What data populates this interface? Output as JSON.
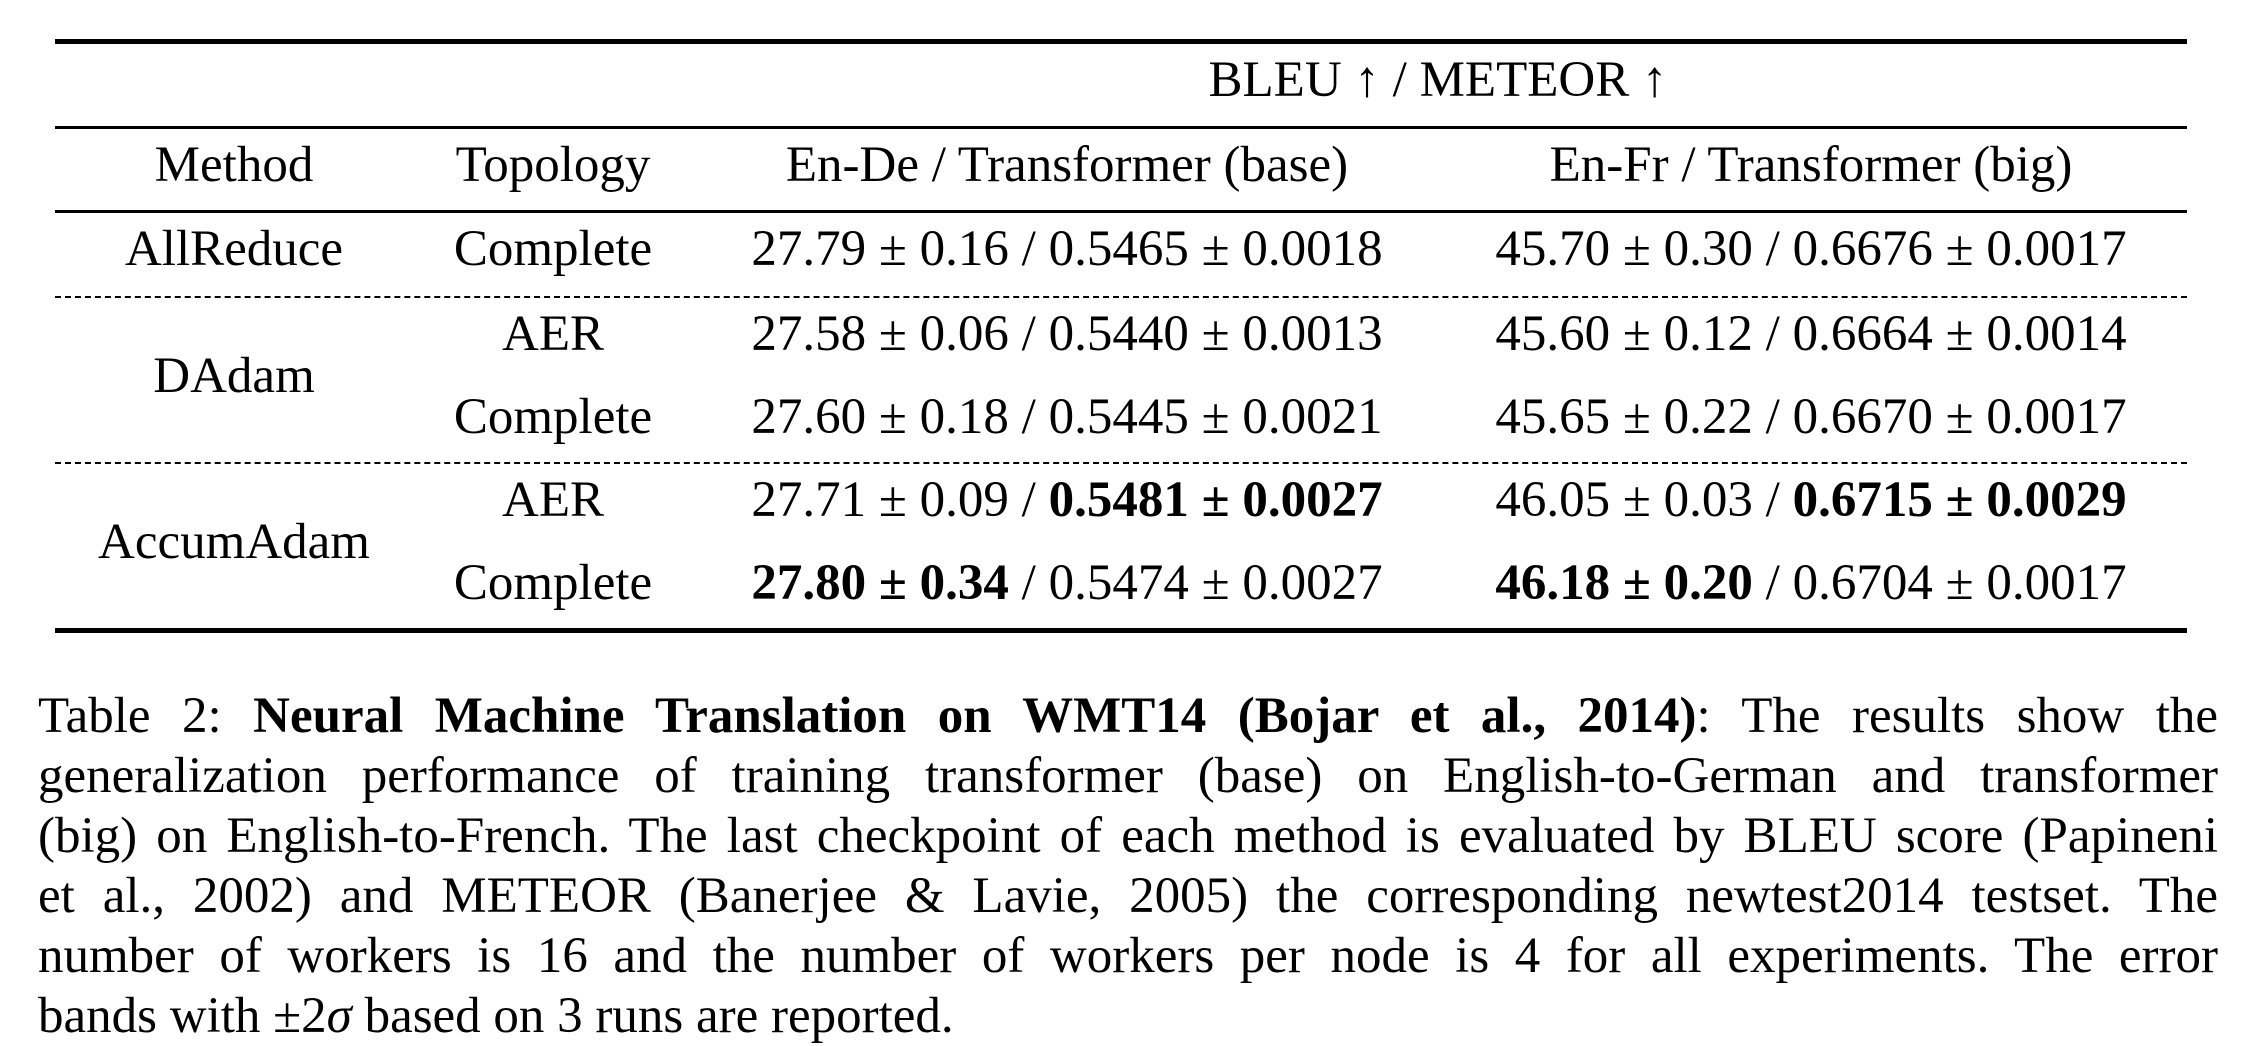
{
  "table": {
    "super_header": "BLEU ↑ / METEOR ↑",
    "columns": {
      "method": "Method",
      "topology": "Topology",
      "ende": "En-De / Transformer (base)",
      "enfr": "En-Fr / Transformer (big)"
    },
    "rows": [
      {
        "method": "AllReduce",
        "topology": "Complete",
        "ende_bleu": "27.79 ± 0.16",
        "ende_meteor": "0.5465 ± 0.0018",
        "enfr_bleu": "45.70 ± 0.30",
        "enfr_meteor": "0.6676 ± 0.0017"
      },
      {
        "method": "DAdam",
        "topology": "AER",
        "ende_bleu": "27.58 ± 0.06",
        "ende_meteor": "0.5440 ± 0.0013",
        "enfr_bleu": "45.60 ± 0.12",
        "enfr_meteor": "0.6664 ± 0.0014"
      },
      {
        "method": "",
        "topology": "Complete",
        "ende_bleu": "27.60 ± 0.18",
        "ende_meteor": "0.5445 ± 0.0021",
        "enfr_bleu": "45.65 ± 0.22",
        "enfr_meteor": "0.6670 ± 0.0017"
      },
      {
        "method": "AccumAdam",
        "topology": "AER",
        "ende_bleu": "27.71 ± 0.09",
        "ende_meteor": "0.5481 ± 0.0027",
        "enfr_bleu": "46.05 ± 0.03",
        "enfr_meteor": "0.6715 ± 0.0029"
      },
      {
        "method": "",
        "topology": "Complete",
        "ende_bleu": "27.80 ± 0.34",
        "ende_meteor": "0.5474 ± 0.0027",
        "enfr_bleu": "46.18 ± 0.20",
        "enfr_meteor": "0.6704 ± 0.0017"
      }
    ],
    "separator": " / "
  },
  "caption": {
    "label": "Table 2:",
    "title": "Neural Machine Translation on WMT14 (Bojar et al., 2014)",
    "line1_rest": ": The results show the",
    "line2": "generalization performance of training transformer (base) on English-to-German and transformer",
    "line3": "(big) on English-to-French. The last checkpoint of each method is evaluated by BLEU score (Papineni",
    "line4": "et al., 2002) and METEOR (Banerjee & Lavie, 2005) the corresponding newtest2014 testset. The",
    "line5": "number of workers is 16 and the number of workers per node is 4 for all experiments. The error",
    "line6_a": "bands with ±2",
    "line6_sigma": "σ",
    "line6_b": " based on 3 runs are reported."
  }
}
